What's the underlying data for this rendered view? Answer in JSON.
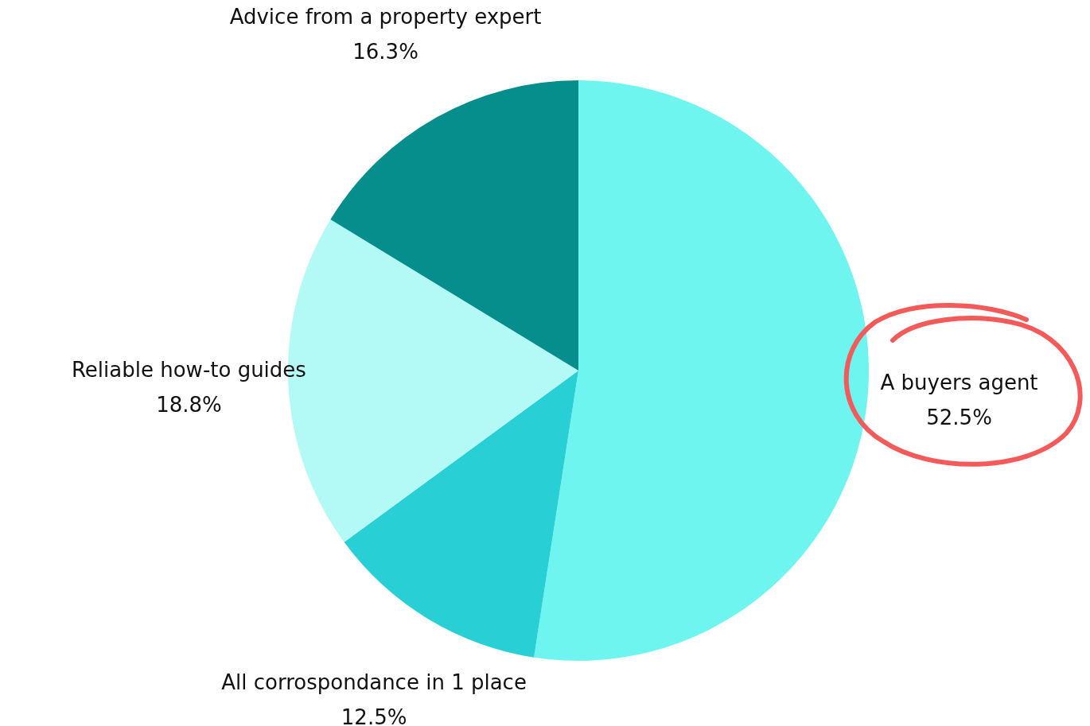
{
  "chart_data": {
    "type": "pie",
    "categories": [
      "A buyers agent",
      "All corrospondance in 1 place",
      "Reliable how-to guides",
      "Advice from a property expert"
    ],
    "values": [
      52.5,
      12.5,
      18.8,
      16.3
    ],
    "value_labels": [
      "52.5%",
      "12.5%",
      "18.8%",
      "16.3%"
    ],
    "colors": [
      "#6ff5ef",
      "#28cfd4",
      "#b3f9f5",
      "#058e8b"
    ]
  }
}
